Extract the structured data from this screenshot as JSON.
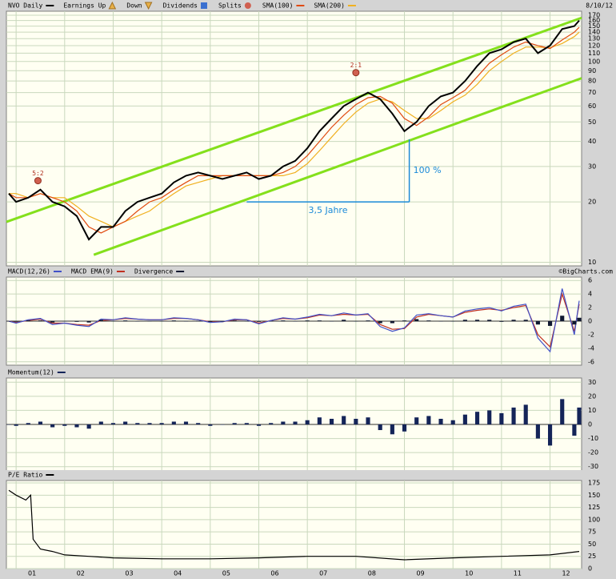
{
  "chart_data": [
    {
      "type": "line",
      "log_scale": true,
      "grid": true,
      "date_label": "8/10/12",
      "markers_legend": [
        "Earnings Up",
        "Down",
        "Dividends",
        "Splits"
      ],
      "xlim": [
        2000.8,
        2012.65
      ],
      "xticks": [
        2001,
        2002,
        2003,
        2004,
        2005,
        2006,
        2007,
        2008,
        2009,
        2010,
        2011,
        2012
      ],
      "ylim": [
        9.6,
        178
      ],
      "yticks": [
        10,
        20,
        30,
        40,
        50,
        60,
        70,
        80,
        90,
        100,
        110,
        120,
        130,
        140,
        150,
        160,
        170
      ],
      "x": [
        2000.85,
        2001,
        2001.25,
        2001.5,
        2001.75,
        2002,
        2002.25,
        2002.5,
        2002.75,
        2003,
        2003.25,
        2003.5,
        2003.75,
        2004,
        2004.25,
        2004.5,
        2004.75,
        2005,
        2005.25,
        2005.5,
        2005.75,
        2006,
        2006.25,
        2006.5,
        2006.75,
        2007,
        2007.25,
        2007.5,
        2007.75,
        2008,
        2008.25,
        2008.5,
        2008.75,
        2009,
        2009.25,
        2009.5,
        2009.75,
        2010,
        2010.25,
        2010.5,
        2010.75,
        2011,
        2011.25,
        2011.5,
        2011.75,
        2012,
        2012.25,
        2012.5,
        2012.6
      ],
      "series": [
        {
          "name": "NVO Daily",
          "color": "#000000",
          "style": "line",
          "values": [
            22,
            20,
            21,
            23,
            20,
            19,
            17,
            13,
            15,
            15,
            18,
            20,
            21,
            22,
            25,
            27,
            28,
            27,
            26,
            27,
            28,
            26,
            27,
            30,
            32,
            37,
            45,
            52,
            60,
            65,
            70,
            65,
            55,
            45,
            50,
            60,
            67,
            70,
            80,
            95,
            110,
            115,
            125,
            130,
            110,
            120,
            145,
            150,
            160
          ]
        },
        {
          "name": "SMA(100)",
          "color": "#e04a10",
          "style": "line",
          "values": [
            22,
            21,
            21,
            22,
            21,
            20,
            18,
            15,
            14,
            15,
            16,
            18,
            20,
            21,
            23,
            25,
            27,
            27,
            27,
            27,
            27,
            27,
            27,
            28,
            30,
            34,
            40,
            47,
            54,
            61,
            66,
            67,
            62,
            52,
            48,
            53,
            61,
            66,
            72,
            84,
            98,
            108,
            118,
            125,
            120,
            116,
            128,
            140,
            148
          ]
        },
        {
          "name": "SMA(200)",
          "color": "#f0b020",
          "style": "line",
          "values": [
            22,
            22,
            21,
            22,
            21,
            21,
            19,
            17,
            16,
            15,
            16,
            17,
            18,
            20,
            22,
            24,
            25,
            26,
            27,
            27,
            27,
            27,
            27,
            27,
            28,
            31,
            36,
            42,
            49,
            56,
            62,
            65,
            63,
            57,
            52,
            52,
            57,
            63,
            68,
            77,
            90,
            100,
            110,
            118,
            118,
            117,
            123,
            133,
            140
          ]
        }
      ],
      "trend_lines": [
        {
          "color": "#84e01c",
          "x": [
            2000.8,
            2012.65
          ],
          "values": [
            15.9,
            165
          ]
        },
        {
          "color": "#84e01c",
          "x": [
            2002.6,
            2012.65
          ],
          "values": [
            10.9,
            82.6
          ]
        }
      ],
      "splits": {
        "x": [
          2001.45,
          2008.0
        ],
        "y": [
          25.5,
          88
        ],
        "labels": [
          "5:2",
          "2:1"
        ]
      },
      "bracket": {
        "color": "#1a8ad8",
        "x": [
          2005.75,
          2009.1
        ],
        "y": [
          20,
          41
        ],
        "labels": [
          "3,5 Jahre",
          "100 %"
        ]
      }
    },
    {
      "type": "line",
      "grid": true,
      "credit": "©BigCharts.com",
      "xlim": [
        2000.8,
        2012.65
      ],
      "xticks": [
        2001,
        2002,
        2003,
        2004,
        2005,
        2006,
        2007,
        2008,
        2009,
        2010,
        2011,
        2012
      ],
      "ylim": [
        -6.5,
        6.5
      ],
      "yticks": [
        6,
        4,
        2,
        0,
        -2,
        -4,
        -6
      ],
      "x": [
        2000.85,
        2001,
        2001.25,
        2001.5,
        2001.75,
        2002,
        2002.25,
        2002.5,
        2002.75,
        2003,
        2003.25,
        2003.5,
        2003.75,
        2004,
        2004.25,
        2004.5,
        2004.75,
        2005,
        2005.25,
        2005.5,
        2005.75,
        2006,
        2006.25,
        2006.5,
        2006.75,
        2007,
        2007.25,
        2007.5,
        2007.75,
        2008,
        2008.25,
        2008.5,
        2008.75,
        2009,
        2009.25,
        2009.5,
        2009.75,
        2010,
        2010.25,
        2010.5,
        2010.75,
        2011,
        2011.25,
        2011.5,
        2011.75,
        2012,
        2012.25,
        2012.5,
        2012.6
      ],
      "series": [
        {
          "name": "MACD(12,26)",
          "color": "#4050c8",
          "style": "line",
          "values": [
            0,
            -0.3,
            0.2,
            0.4,
            -0.5,
            -0.3,
            -0.6,
            -0.8,
            0.3,
            0.2,
            0.5,
            0.3,
            0.2,
            0.2,
            0.5,
            0.4,
            0.2,
            -0.2,
            -0.1,
            0.3,
            0.2,
            -0.4,
            0.1,
            0.5,
            0.3,
            0.6,
            1.0,
            0.8,
            1.2,
            0.9,
            1.1,
            -0.8,
            -1.5,
            -1.0,
            0.9,
            1.1,
            0.8,
            0.6,
            1.5,
            1.8,
            2.0,
            1.5,
            2.2,
            2.5,
            -2.5,
            -4.5,
            4.8,
            -2.0,
            3.0
          ]
        },
        {
          "name": "MACD EMA(9)",
          "color": "#c03020",
          "style": "line",
          "values": [
            0,
            -0.2,
            0.1,
            0.3,
            -0.3,
            -0.3,
            -0.5,
            -0.6,
            0.1,
            0.2,
            0.4,
            0.3,
            0.2,
            0.2,
            0.4,
            0.4,
            0.2,
            -0.1,
            -0.1,
            0.2,
            0.2,
            -0.3,
            0.1,
            0.4,
            0.3,
            0.5,
            0.9,
            0.8,
            1.0,
            0.9,
            1.0,
            -0.5,
            -1.2,
            -1.1,
            0.6,
            1.0,
            0.8,
            0.6,
            1.3,
            1.6,
            1.8,
            1.6,
            2.0,
            2.3,
            -2.0,
            -3.8,
            4.0,
            -1.5,
            2.5
          ]
        },
        {
          "name": "Divergence",
          "color": "#101830",
          "style": "bar",
          "values": [
            0,
            -0.1,
            0.1,
            0.1,
            -0.2,
            0,
            -0.1,
            -0.2,
            0.2,
            0,
            0.1,
            0,
            0,
            0,
            0.1,
            0,
            0,
            -0.1,
            0,
            0.1,
            0,
            -0.1,
            0,
            0.1,
            0,
            0.1,
            0.1,
            0,
            0.2,
            0,
            0.1,
            -0.3,
            -0.3,
            0.1,
            0.3,
            0.1,
            0,
            0,
            0.2,
            0.2,
            0.2,
            -0.1,
            0.2,
            0.2,
            -0.5,
            -0.7,
            0.8,
            -0.5,
            0.5
          ]
        }
      ]
    },
    {
      "type": "bar",
      "grid": true,
      "xlim": [
        2000.8,
        2012.65
      ],
      "xticks": [
        2001,
        2002,
        2003,
        2004,
        2005,
        2006,
        2007,
        2008,
        2009,
        2010,
        2011,
        2012
      ],
      "ylim": [
        -33,
        33
      ],
      "yticks": [
        30,
        20,
        10,
        0,
        -10,
        -20,
        -30
      ],
      "x": [
        2000.85,
        2001,
        2001.25,
        2001.5,
        2001.75,
        2002,
        2002.25,
        2002.5,
        2002.75,
        2003,
        2003.25,
        2003.5,
        2003.75,
        2004,
        2004.25,
        2004.5,
        2004.75,
        2005,
        2005.25,
        2005.5,
        2005.75,
        2006,
        2006.25,
        2006.5,
        2006.75,
        2007,
        2007.25,
        2007.5,
        2007.75,
        2008,
        2008.25,
        2008.5,
        2008.75,
        2009,
        2009.25,
        2009.5,
        2009.75,
        2010,
        2010.25,
        2010.5,
        2010.75,
        2011,
        2011.25,
        2011.5,
        2011.75,
        2012,
        2012.25,
        2012.5,
        2012.6
      ],
      "series": [
        {
          "name": "Momentum(12)",
          "color": "#142458",
          "style": "bar",
          "values": [
            0,
            -1,
            1,
            2,
            -2,
            -1,
            -2,
            -3,
            2,
            1,
            2,
            1,
            1,
            1,
            2,
            2,
            1,
            -1,
            0,
            1,
            1,
            -1,
            1,
            2,
            2,
            3,
            5,
            4,
            6,
            4,
            5,
            -4,
            -7,
            -5,
            5,
            6,
            4,
            3,
            7,
            9,
            10,
            8,
            12,
            14,
            -10,
            -15,
            18,
            -8,
            12
          ]
        }
      ]
    },
    {
      "type": "line",
      "grid": true,
      "xlim": [
        2000.8,
        2012.65
      ],
      "xticks": [
        {
          "value": 2001,
          "label": "01"
        },
        {
          "value": 2002,
          "label": "02"
        },
        {
          "value": 2003,
          "label": "03"
        },
        {
          "value": 2004,
          "label": "04"
        },
        {
          "value": 2005,
          "label": "05"
        },
        {
          "value": 2006,
          "label": "06"
        },
        {
          "value": 2007,
          "label": "07"
        },
        {
          "value": 2008,
          "label": "08"
        },
        {
          "value": 2009,
          "label": "09"
        },
        {
          "value": 2010,
          "label": "10"
        },
        {
          "value": 2011,
          "label": "11"
        },
        {
          "value": 2012,
          "label": "12"
        }
      ],
      "ylim": [
        0,
        180
      ],
      "yticks": [
        175,
        150,
        125,
        100,
        75,
        50,
        25,
        0
      ],
      "x": [
        2000.85,
        2001,
        2001.2,
        2001.3,
        2001.35,
        2001.5,
        2001.75,
        2002,
        2002.5,
        2003,
        2004,
        2005,
        2006,
        2007,
        2008,
        2009,
        2010,
        2011,
        2012,
        2012.6
      ],
      "series": [
        {
          "name": "P/E Ratio",
          "color": "#000000",
          "style": "line",
          "values": [
            160,
            150,
            140,
            150,
            60,
            40,
            35,
            28,
            25,
            22,
            20,
            20,
            22,
            25,
            25,
            18,
            22,
            25,
            28,
            35
          ]
        }
      ]
    }
  ]
}
